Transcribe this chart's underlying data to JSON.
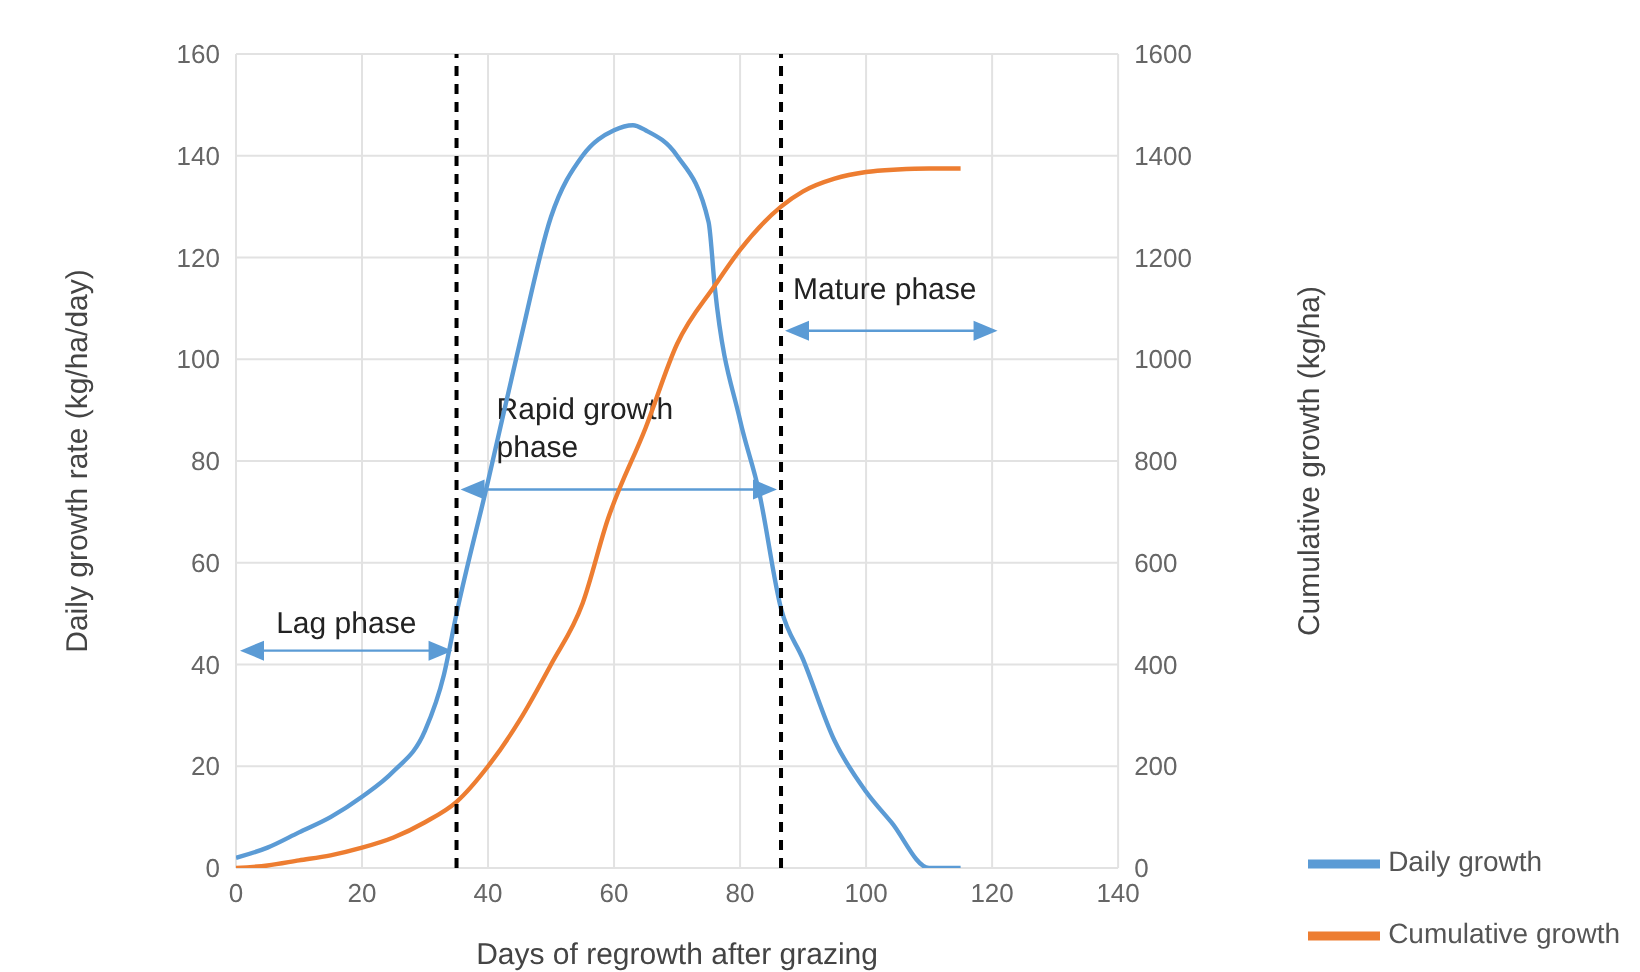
{
  "chart_data": {
    "type": "line",
    "xlabel": "Days of regrowth after grazing",
    "ylabel": "Daily growth rate (kg/ha/day)",
    "y2label": "Cumulative growth (kg/ha)",
    "series": [
      {
        "name": "Daily growth",
        "color": "#5b9bd5",
        "x": [
          0,
          5,
          10,
          15,
          20,
          25,
          30,
          33,
          35,
          40,
          45,
          50,
          55,
          60,
          63,
          65,
          70,
          75,
          76,
          80,
          83,
          86.5,
          90,
          95,
          100,
          104,
          110,
          115
        ],
        "values": [
          2,
          4,
          7,
          10,
          14,
          19,
          27,
          38,
          50,
          76,
          103,
          128,
          140,
          145,
          146,
          145,
          140,
          127,
          114,
          88,
          74,
          51,
          41,
          25,
          15,
          9,
          0,
          0
        ]
      },
      {
        "name": "Cumulative growth",
        "color": "#ed7d31",
        "axis": "y2",
        "x": [
          0,
          5,
          10,
          15,
          20,
          25,
          30,
          35,
          40,
          45,
          50,
          55,
          59,
          65,
          70,
          76,
          80,
          86.5,
          90,
          95,
          100,
          105,
          110,
          115
        ],
        "values": [
          0,
          5,
          15,
          25,
          40,
          60,
          90,
          130,
          200,
          290,
          400,
          520,
          685,
          865,
          1030,
          1145,
          1215,
          1300,
          1330,
          1355,
          1368,
          1373,
          1375,
          1375
        ]
      }
    ],
    "xlim": [
      0,
      140
    ],
    "xticks": [
      0,
      20,
      40,
      60,
      80,
      100,
      120,
      140
    ],
    "ylim": [
      0,
      160
    ],
    "yticks": [
      0,
      20,
      40,
      60,
      80,
      100,
      120,
      140,
      160
    ],
    "y2lim": [
      0,
      1600
    ],
    "y2ticks": [
      0,
      200,
      400,
      600,
      800,
      1000,
      1200,
      1400,
      1600
    ],
    "ref_lines": [
      {
        "axis": "x",
        "value": 35,
        "color": "#000000",
        "line_style": "dashed"
      },
      {
        "axis": "x",
        "value": 86.5,
        "color": "#000000",
        "line_style": "dashed"
      }
    ],
    "annotations": [
      "Lag phase",
      "Rapid growth phase",
      "Mature phase"
    ],
    "grid": true,
    "legend": "bottom right",
    "marker": "none",
    "line_style": "solid"
  }
}
